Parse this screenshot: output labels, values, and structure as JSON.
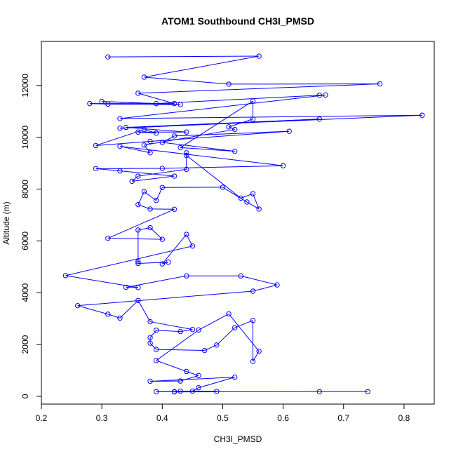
{
  "chart_data": {
    "type": "line",
    "title": "ATOM1 Southbound CH3I_PMSD",
    "xlabel": "CH3I_PMSD",
    "ylabel": "Altitude (m)",
    "xlim": [
      0.2,
      0.85
    ],
    "ylim": [
      -300,
      13700
    ],
    "x_ticks": [
      0.2,
      0.3,
      0.4,
      0.5,
      0.6,
      0.7,
      0.8
    ],
    "x_tick_labels": [
      "0.2",
      "0.3",
      "0.4",
      "0.5",
      "0.6",
      "0.7",
      "0.8"
    ],
    "y_ticks": [
      0,
      2000,
      4000,
      6000,
      8000,
      10000,
      12000
    ],
    "y_tick_labels": [
      "0",
      "2000",
      "4000",
      "6000",
      "8000",
      "10000",
      "12000"
    ],
    "grid": false,
    "marker": "open-circle",
    "color": "#0000ff",
    "series": [
      {
        "points": [
          [
            0.31,
            13100
          ],
          [
            0.56,
            13130
          ],
          [
            0.37,
            12320
          ],
          [
            0.51,
            12050
          ],
          [
            0.76,
            12060
          ],
          [
            0.36,
            11700
          ],
          [
            0.42,
            11300
          ],
          [
            0.28,
            11300
          ],
          [
            0.31,
            11280
          ],
          [
            0.43,
            11260
          ],
          [
            0.3,
            11380
          ],
          [
            0.39,
            11300
          ],
          [
            0.66,
            11620
          ],
          [
            0.67,
            11630
          ],
          [
            0.33,
            10720
          ],
          [
            0.83,
            10850
          ],
          [
            0.33,
            10350
          ],
          [
            0.66,
            10700
          ],
          [
            0.34,
            10380
          ],
          [
            0.44,
            10200
          ],
          [
            0.36,
            10200
          ],
          [
            0.39,
            10160
          ],
          [
            0.37,
            10300
          ],
          [
            0.29,
            9680
          ],
          [
            0.38,
            9840
          ],
          [
            0.61,
            10230
          ],
          [
            0.42,
            10050
          ],
          [
            0.4,
            9800
          ],
          [
            0.52,
            9460
          ],
          [
            0.43,
            9600
          ],
          [
            0.55,
            11400
          ],
          [
            0.55,
            10700
          ],
          [
            0.51,
            10400
          ],
          [
            0.52,
            10300
          ],
          [
            0.37,
            9700
          ],
          [
            0.38,
            9400
          ],
          [
            0.33,
            9650
          ],
          [
            0.6,
            8900
          ],
          [
            0.4,
            8800
          ],
          [
            0.29,
            8790
          ],
          [
            0.33,
            8700
          ],
          [
            0.42,
            8500
          ],
          [
            0.35,
            8300
          ],
          [
            0.36,
            8500
          ],
          [
            0.44,
            8760
          ],
          [
            0.44,
            9400
          ],
          [
            0.44,
            9300
          ],
          [
            0.53,
            7650
          ],
          [
            0.55,
            7820
          ],
          [
            0.56,
            7230
          ],
          [
            0.54,
            7500
          ],
          [
            0.5,
            8070
          ],
          [
            0.4,
            8060
          ],
          [
            0.39,
            7560
          ],
          [
            0.37,
            7900
          ],
          [
            0.36,
            7400
          ],
          [
            0.38,
            7230
          ],
          [
            0.42,
            7220
          ],
          [
            0.31,
            6100
          ],
          [
            0.4,
            6060
          ],
          [
            0.38,
            6510
          ],
          [
            0.36,
            6420
          ],
          [
            0.36,
            5200
          ],
          [
            0.36,
            5130
          ],
          [
            0.41,
            5180
          ],
          [
            0.4,
            5110
          ],
          [
            0.44,
            6250
          ],
          [
            0.45,
            5800
          ],
          [
            0.24,
            4660
          ],
          [
            0.36,
            4200
          ],
          [
            0.34,
            4210
          ],
          [
            0.44,
            4650
          ],
          [
            0.53,
            4650
          ],
          [
            0.59,
            4300
          ],
          [
            0.55,
            4060
          ],
          [
            0.26,
            3500
          ],
          [
            0.31,
            3170
          ],
          [
            0.33,
            3020
          ],
          [
            0.36,
            3700
          ],
          [
            0.38,
            2880
          ],
          [
            0.45,
            2580
          ],
          [
            0.43,
            2500
          ],
          [
            0.39,
            2550
          ],
          [
            0.38,
            2270
          ],
          [
            0.38,
            2050
          ],
          [
            0.39,
            1810
          ],
          [
            0.47,
            1770
          ],
          [
            0.49,
            1980
          ],
          [
            0.52,
            2650
          ],
          [
            0.55,
            2930
          ],
          [
            0.55,
            1350
          ],
          [
            0.56,
            1740
          ],
          [
            0.51,
            3180
          ],
          [
            0.46,
            2560
          ],
          [
            0.39,
            1380
          ],
          [
            0.44,
            960
          ],
          [
            0.46,
            800
          ],
          [
            0.43,
            590
          ],
          [
            0.38,
            580
          ],
          [
            0.52,
            740
          ],
          [
            0.46,
            330
          ],
          [
            0.45,
            200
          ],
          [
            0.39,
            180
          ],
          [
            0.42,
            180
          ],
          [
            0.43,
            200
          ],
          [
            0.49,
            190
          ],
          [
            0.42,
            170
          ],
          [
            0.66,
            180
          ],
          [
            0.74,
            180
          ]
        ]
      }
    ]
  }
}
